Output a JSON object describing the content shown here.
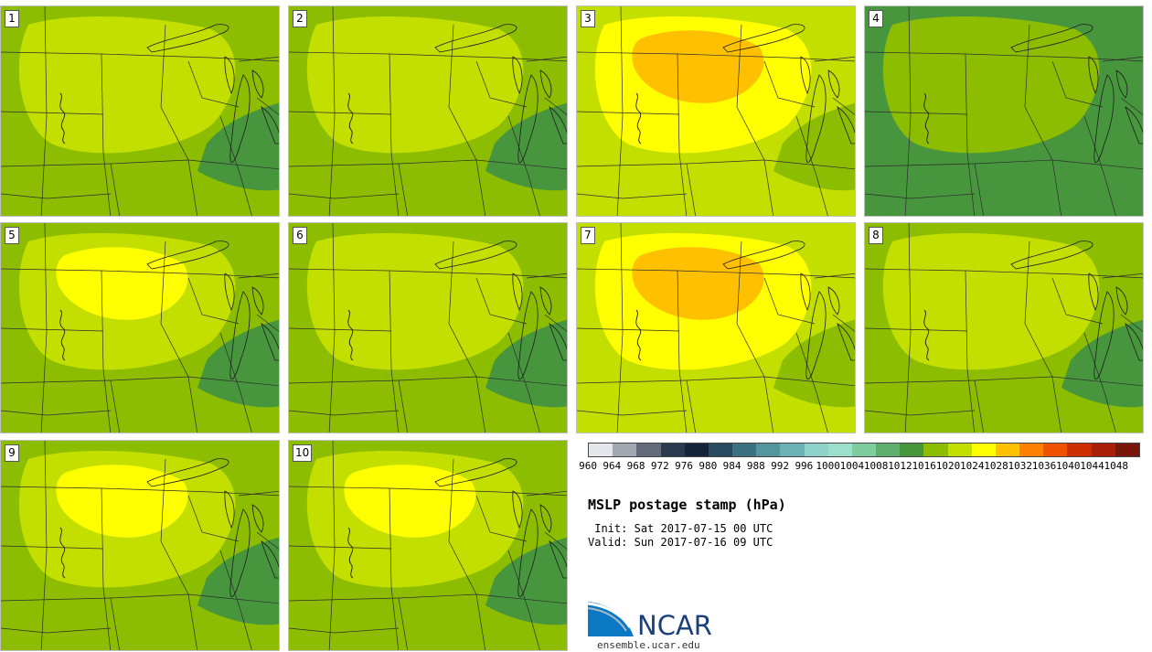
{
  "title": "MSLP postage stamp (hPa)",
  "init_label": "Init:",
  "init_value": "Sat 2017-07-15 00 UTC",
  "valid_label": "Valid:",
  "valid_value": "Sun 2017-07-16 09 UTC",
  "logo_text": "NCAR",
  "url_text": "ensemble.ucar.edu",
  "colorbar": {
    "levels": [
      "960",
      "964",
      "968",
      "972",
      "976",
      "980",
      "984",
      "988",
      "992",
      "996",
      "1000",
      "1004",
      "1008",
      "1012",
      "1016",
      "1020",
      "1024",
      "1028",
      "1032",
      "1036",
      "1040",
      "1044",
      "1048"
    ],
    "colors": [
      "#e4e6ec",
      "#a3a7b2",
      "#646b7a",
      "#2b3a4f",
      "#14253a",
      "#284a5e",
      "#3c7181",
      "#55959d",
      "#6cb2b4",
      "#8fd1cb",
      "#9ce0cc",
      "#7fcc9f",
      "#5fae6f",
      "#47963d",
      "#8cbd00",
      "#c3df00",
      "#ffff00",
      "#ffc000",
      "#ff7f00",
      "#f05000",
      "#cd2e00",
      "#a91e08",
      "#7a1609"
    ]
  },
  "member_pressures": [
    {
      "label": "1",
      "background": 1016,
      "core": 1020,
      "inner": 1020,
      "low_east": 1012
    },
    {
      "label": "2",
      "background": 1016,
      "core": 1020,
      "inner": 1020,
      "low_east": 1012
    },
    {
      "label": "3",
      "background": 1020,
      "core": 1024,
      "inner": 1028,
      "low_east": 1016
    },
    {
      "label": "4",
      "background": 1012,
      "core": 1016,
      "inner": 1016,
      "low_east": 1012
    },
    {
      "label": "5",
      "background": 1016,
      "core": 1020,
      "inner": 1024,
      "low_east": 1012
    },
    {
      "label": "6",
      "background": 1016,
      "core": 1020,
      "inner": 1020,
      "low_east": 1012
    },
    {
      "label": "7",
      "background": 1020,
      "core": 1024,
      "inner": 1028,
      "low_east": 1016
    },
    {
      "label": "8",
      "background": 1016,
      "core": 1020,
      "inner": 1020,
      "low_east": 1012
    },
    {
      "label": "9",
      "background": 1016,
      "core": 1020,
      "inner": 1024,
      "low_east": 1012
    },
    {
      "label": "10",
      "background": 1016,
      "core": 1020,
      "inner": 1024,
      "low_east": 1012
    }
  ]
}
